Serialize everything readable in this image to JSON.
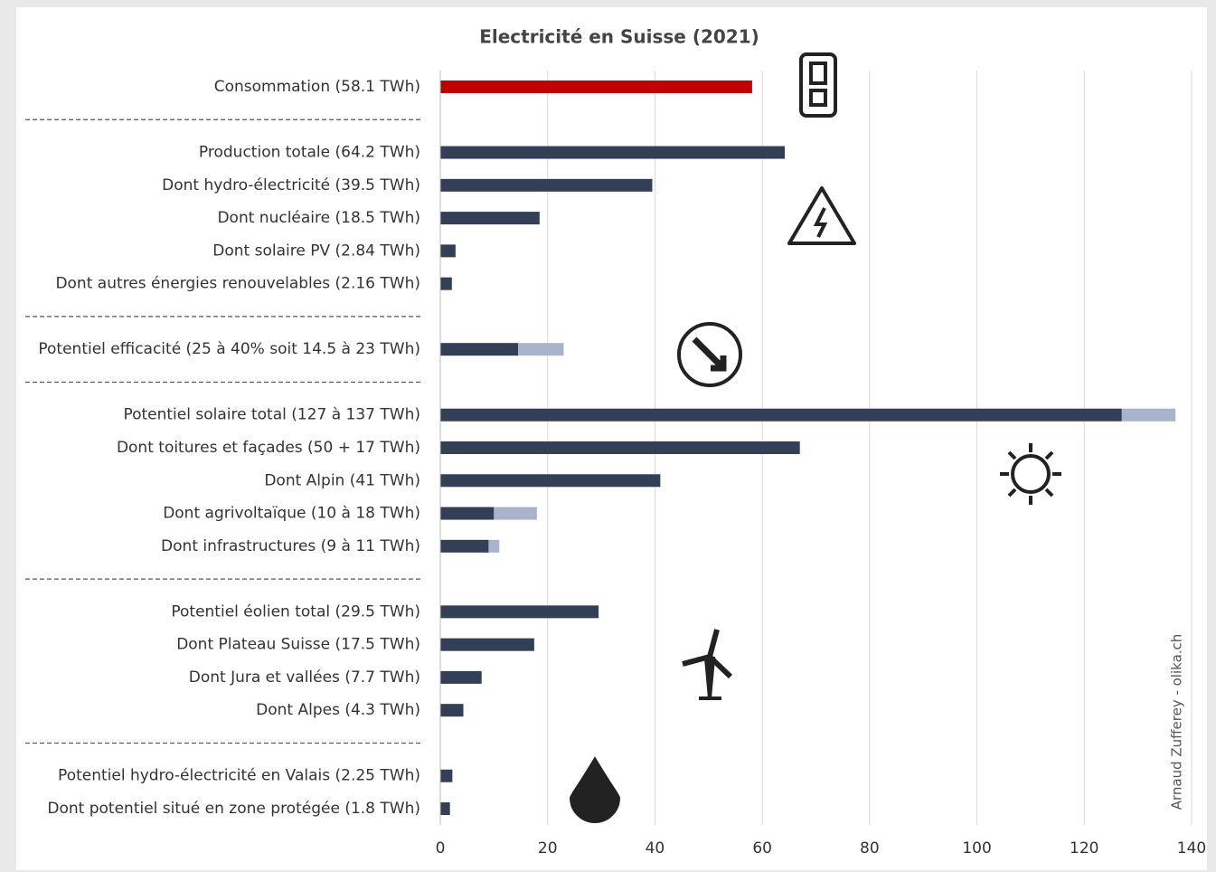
{
  "chart_data": {
    "type": "hbar-stacked",
    "title": "Electricité en Suisse (2021)",
    "categories": [
      "Consommation (58.1 TWh)",
      null,
      "Production totale (64.2 TWh)",
      "Dont hydro-électricité (39.5 TWh)",
      "Dont nucléaire (18.5 TWh)",
      "Dont solaire PV (2.84 TWh)",
      "Dont autres énergies renouvelables (2.16 TWh)",
      null,
      "Potentiel efficacité (25 à 40% soit 14.5 à 23 TWh)",
      null,
      "Potentiel solaire total (127 à 137 TWh)",
      "Dont toitures et façades (50 + 17 TWh)",
      "Dont Alpin (41 TWh)",
      "Dont agrivoltaïque (10 à 18 TWh)",
      "Dont infrastructures (9 à 11 TWh)",
      null,
      "Potentiel éolien total (29.5 TWh)",
      "Dont Plateau Suisse (17.5 TWh)",
      "Dont Jura et vallées (7.7 TWh)",
      "Dont Alpes (4.3 TWh)",
      null,
      "Potentiel hydro-électricité en Valais (2.25 TWh)",
      "Dont potentiel situé en zone protégée (1.8 TWh)"
    ],
    "series": [
      {
        "color": "#c00000",
        "values": [
          58.1,
          null,
          null,
          null,
          null,
          null,
          null,
          null,
          null,
          null,
          null,
          null,
          null,
          null,
          null,
          null,
          null,
          null,
          null,
          null,
          null,
          null,
          null
        ]
      },
      {
        "color": "#323f57",
        "values": [
          null,
          null,
          64.2,
          39.5,
          18.5,
          2.84,
          2.16,
          null,
          14.5,
          null,
          127,
          67,
          41,
          10,
          9,
          null,
          29.5,
          17.5,
          7.7,
          4.3,
          null,
          2.25,
          1.8
        ]
      },
      {
        "color": "#a9b4cb",
        "values": [
          null,
          null,
          null,
          null,
          null,
          null,
          null,
          null,
          8.5,
          null,
          10,
          null,
          null,
          8,
          2,
          null,
          null,
          null,
          null,
          null,
          null,
          null,
          null
        ]
      }
    ],
    "xlim": [
      0,
      140
    ],
    "xticks": [
      0,
      20,
      40,
      60,
      80,
      100,
      120,
      140
    ],
    "grid": true,
    "credit": "Arnaud Zufferey - olika.ch"
  }
}
